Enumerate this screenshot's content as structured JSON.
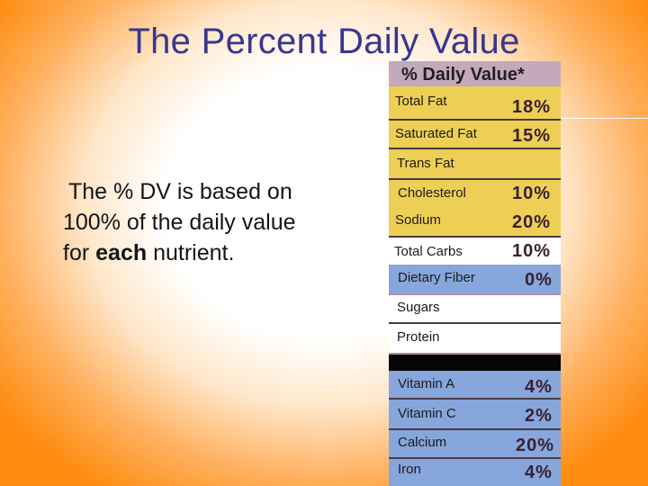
{
  "slide": {
    "title": "The Percent Daily Value",
    "body_line1": "The % DV is based on",
    "body_line2": "100% of the daily value",
    "body_line3_pre": "for",
    "body_line3_bold": "each",
    "body_line3_post": "nutrient."
  },
  "label": {
    "header": "% Daily Value*",
    "rows": [
      {
        "name": "Total Fat",
        "pct": "18%"
      },
      {
        "name": "Saturated Fat",
        "pct": "15%"
      },
      {
        "name": "Trans Fat",
        "pct": ""
      },
      {
        "name": "Cholesterol",
        "pct": "10%"
      },
      {
        "name": "Sodium",
        "pct": "20%"
      },
      {
        "name": "Total Carbs",
        "pct": "10%"
      },
      {
        "name": "Dietary Fiber",
        "pct": "0%"
      },
      {
        "name": "Sugars",
        "pct": ""
      },
      {
        "name": "Protein",
        "pct": ""
      },
      {
        "name": "Vitamin A",
        "pct": "4%"
      },
      {
        "name": "Vitamin C",
        "pct": "2%"
      },
      {
        "name": "Calcium",
        "pct": "20%"
      },
      {
        "name": "Iron",
        "pct": "4%"
      }
    ]
  },
  "colors": {
    "title": "#37378e",
    "fat_rows": "#eecf55",
    "carb_rows": "#86a6dc",
    "percent_column": "#bb89a8"
  }
}
